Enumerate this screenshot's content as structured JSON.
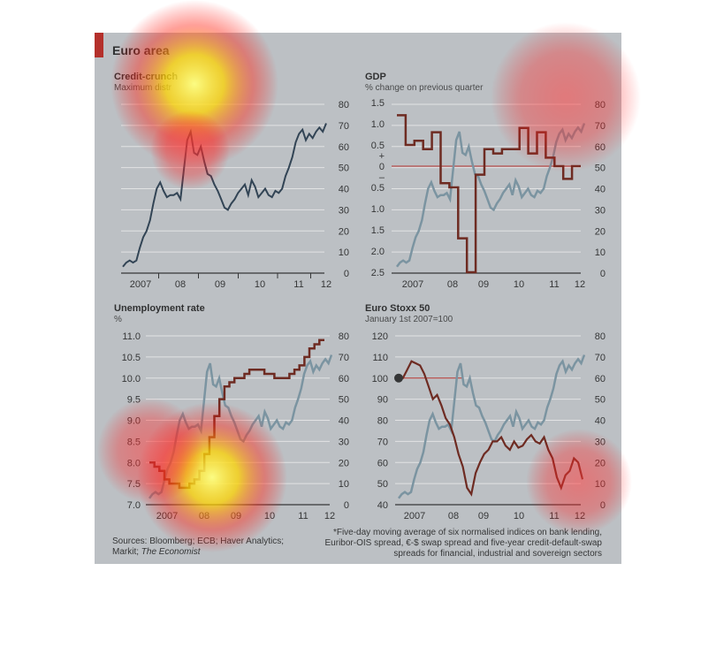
{
  "figure": {
    "title": "Euro area",
    "sources": [
      "Sources: Bloomberg; ECB; Haver Analytics;",
      "Markit; The Economist"
    ],
    "footnote": [
      "*Five-day moving average of six normalised indices on bank lending,",
      "Euribor-OIS spread, €-$ swap spread and five-year credit-default-swap",
      "spreads for financial, industrial and sovereign sectors"
    ]
  },
  "colors": {
    "stress_line": "#1e3448",
    "stress_overlay": "#7c9aa9",
    "red_line": "#6b1407",
    "zero_line": "#c41a12",
    "brand_red": "#c41a12"
  },
  "chart_data": [
    {
      "type": "line",
      "title": "Credit-crunch",
      "subtitle": "Maximum distr",
      "xlabel": "",
      "ylabel": "",
      "x_ticks": [
        "2007",
        "08",
        "09",
        "10",
        "11",
        "12"
      ],
      "right_axis": {
        "range": [
          0,
          80
        ],
        "ticks": [
          "0",
          "10",
          "20",
          "30",
          "40",
          "50",
          "60",
          "70",
          "80"
        ]
      },
      "grid": true,
      "series": [
        {
          "values": [
            3,
            5,
            6,
            5,
            6,
            12,
            17,
            20,
            25,
            33,
            40,
            43,
            39,
            36,
            37,
            37,
            38,
            35,
            49,
            63,
            67,
            57,
            56,
            60,
            53,
            47,
            46,
            42,
            39,
            35,
            31,
            30,
            33,
            35,
            38,
            40,
            42,
            37,
            44,
            41,
            36,
            38,
            40,
            37,
            36,
            39,
            38,
            40,
            46,
            50,
            55,
            62,
            66,
            68,
            63,
            66,
            64,
            67,
            69,
            67,
            71
          ]
        }
      ]
    },
    {
      "type": "line",
      "title": "GDP",
      "subtitle": "% change on previous quarter",
      "xlabel": "",
      "ylabel": "",
      "x_ticks": [
        "2007",
        "08",
        "09",
        "10",
        "11",
        "12"
      ],
      "left_axis": {
        "ticks": [
          "1.5",
          "1.0",
          "0.5",
          "+",
          "0",
          "–",
          "0.5",
          "1.0",
          "1.5",
          "2.0",
          "2.5"
        ]
      },
      "right_axis": {
        "ticks": [
          "80",
          "70",
          "60",
          "50",
          "40",
          "30",
          "20",
          "10",
          "0"
        ]
      },
      "grid": true,
      "series": [
        {
          "values": [
            1.2,
            0.5,
            0.6,
            0.4,
            0.8,
            -0.4,
            -0.5,
            -1.7,
            -2.5,
            -0.2,
            0.4,
            0.3,
            0.4,
            0.4,
            0.9,
            0.3,
            0.8,
            0.2,
            0.0,
            -0.3,
            0.0
          ]
        },
        {
          "values": [
            3,
            5,
            6,
            5,
            6,
            12,
            17,
            20,
            25,
            33,
            40,
            43,
            39,
            36,
            37,
            37,
            38,
            35,
            49,
            63,
            67,
            57,
            56,
            60,
            53,
            47,
            46,
            42,
            39,
            35,
            31,
            30,
            33,
            35,
            38,
            40,
            42,
            37,
            44,
            41,
            36,
            38,
            40,
            37,
            36,
            39,
            38,
            40,
            46,
            50,
            55,
            62,
            66,
            68,
            63,
            66,
            64,
            67,
            69,
            67,
            71
          ]
        }
      ]
    },
    {
      "type": "line",
      "title": "Unemployment rate",
      "subtitle": "%",
      "xlabel": "",
      "ylabel": "",
      "x_ticks": [
        "2007",
        "08",
        "09",
        "10",
        "11",
        "12"
      ],
      "left_axis": {
        "range": [
          7.0,
          11.0
        ],
        "ticks": [
          "11.0",
          "10.5",
          "10.0",
          "9.5",
          "9.0",
          "8.5",
          "8.0",
          "7.5",
          "7.0"
        ]
      },
      "right_axis": {
        "ticks": [
          "80",
          "70",
          "60",
          "50",
          "40",
          "30",
          "20",
          "10",
          "0"
        ]
      },
      "grid": true,
      "series": [
        {
          "values": [
            8.0,
            7.9,
            7.8,
            7.6,
            7.5,
            7.5,
            7.4,
            7.4,
            7.5,
            7.6,
            7.8,
            8.2,
            8.6,
            9.1,
            9.5,
            9.8,
            9.9,
            10.0,
            10.0,
            10.1,
            10.2,
            10.2,
            10.2,
            10.1,
            10.1,
            10.0,
            10.0,
            10.0,
            10.1,
            10.2,
            10.3,
            10.5,
            10.7,
            10.8,
            10.9
          ]
        },
        {
          "values": [
            3,
            5,
            6,
            5,
            6,
            12,
            17,
            20,
            25,
            33,
            40,
            43,
            39,
            36,
            37,
            37,
            38,
            35,
            49,
            63,
            67,
            57,
            56,
            60,
            53,
            47,
            46,
            42,
            39,
            35,
            31,
            30,
            33,
            35,
            38,
            40,
            42,
            37,
            44,
            41,
            36,
            38,
            40,
            37,
            36,
            39,
            38,
            40,
            46,
            50,
            55,
            62,
            66,
            68,
            63,
            66,
            64,
            67,
            69,
            67,
            71
          ]
        }
      ]
    },
    {
      "type": "line",
      "title": "Euro Stoxx 50",
      "subtitle": "January 1st 2007=100",
      "xlabel": "",
      "ylabel": "",
      "x_ticks": [
        "2007",
        "08",
        "09",
        "10",
        "11",
        "12"
      ],
      "left_axis": {
        "range": [
          40,
          120
        ],
        "ticks": [
          "120",
          "110",
          "100",
          "90",
          "80",
          "70",
          "60",
          "50",
          "40"
        ]
      },
      "right_axis": {
        "ticks": [
          "80",
          "70",
          "60",
          "50",
          "40",
          "30",
          "20",
          "10",
          "0"
        ]
      },
      "grid": true,
      "series": [
        {
          "values": [
            100,
            100,
            104,
            108,
            107,
            106,
            102,
            96,
            90,
            92,
            87,
            81,
            78,
            72,
            64,
            58,
            48,
            45,
            55,
            60,
            64,
            66,
            70,
            70,
            72,
            68,
            66,
            70,
            67,
            68,
            71,
            73,
            70,
            69,
            72,
            66,
            62,
            53,
            48,
            54,
            56,
            62,
            60,
            52
          ]
        },
        {
          "values": [
            3,
            5,
            6,
            5,
            6,
            12,
            17,
            20,
            25,
            33,
            40,
            43,
            39,
            36,
            37,
            37,
            38,
            35,
            49,
            63,
            67,
            57,
            56,
            60,
            53,
            47,
            46,
            42,
            39,
            35,
            31,
            30,
            33,
            35,
            38,
            40,
            42,
            37,
            44,
            41,
            36,
            38,
            40,
            37,
            36,
            39,
            38,
            40,
            46,
            50,
            55,
            62,
            66,
            68,
            63,
            66,
            64,
            67,
            69,
            67,
            71
          ]
        }
      ]
    }
  ]
}
